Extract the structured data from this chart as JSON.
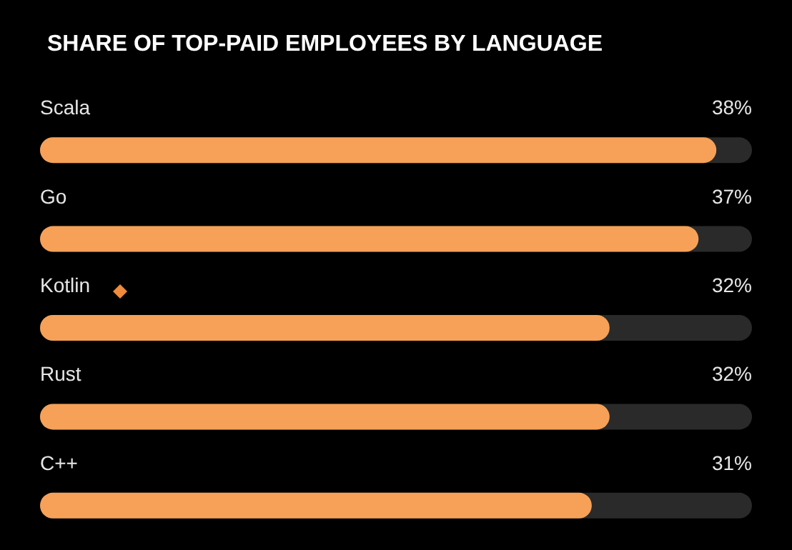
{
  "chart_data": {
    "type": "bar",
    "orientation": "horizontal",
    "title": "SHARE OF TOP-PAID EMPLOYEES BY LANGUAGE",
    "categories": [
      "Scala",
      "Go",
      "Kotlin",
      "Rust",
      "C++"
    ],
    "values": [
      38,
      37,
      32,
      32,
      31
    ],
    "value_labels": [
      "38%",
      "37%",
      "32%",
      "32%",
      "31%"
    ],
    "color": "#f6a157",
    "xlim": [
      0,
      40
    ],
    "tick_labels": false,
    "grid": false
  }
}
